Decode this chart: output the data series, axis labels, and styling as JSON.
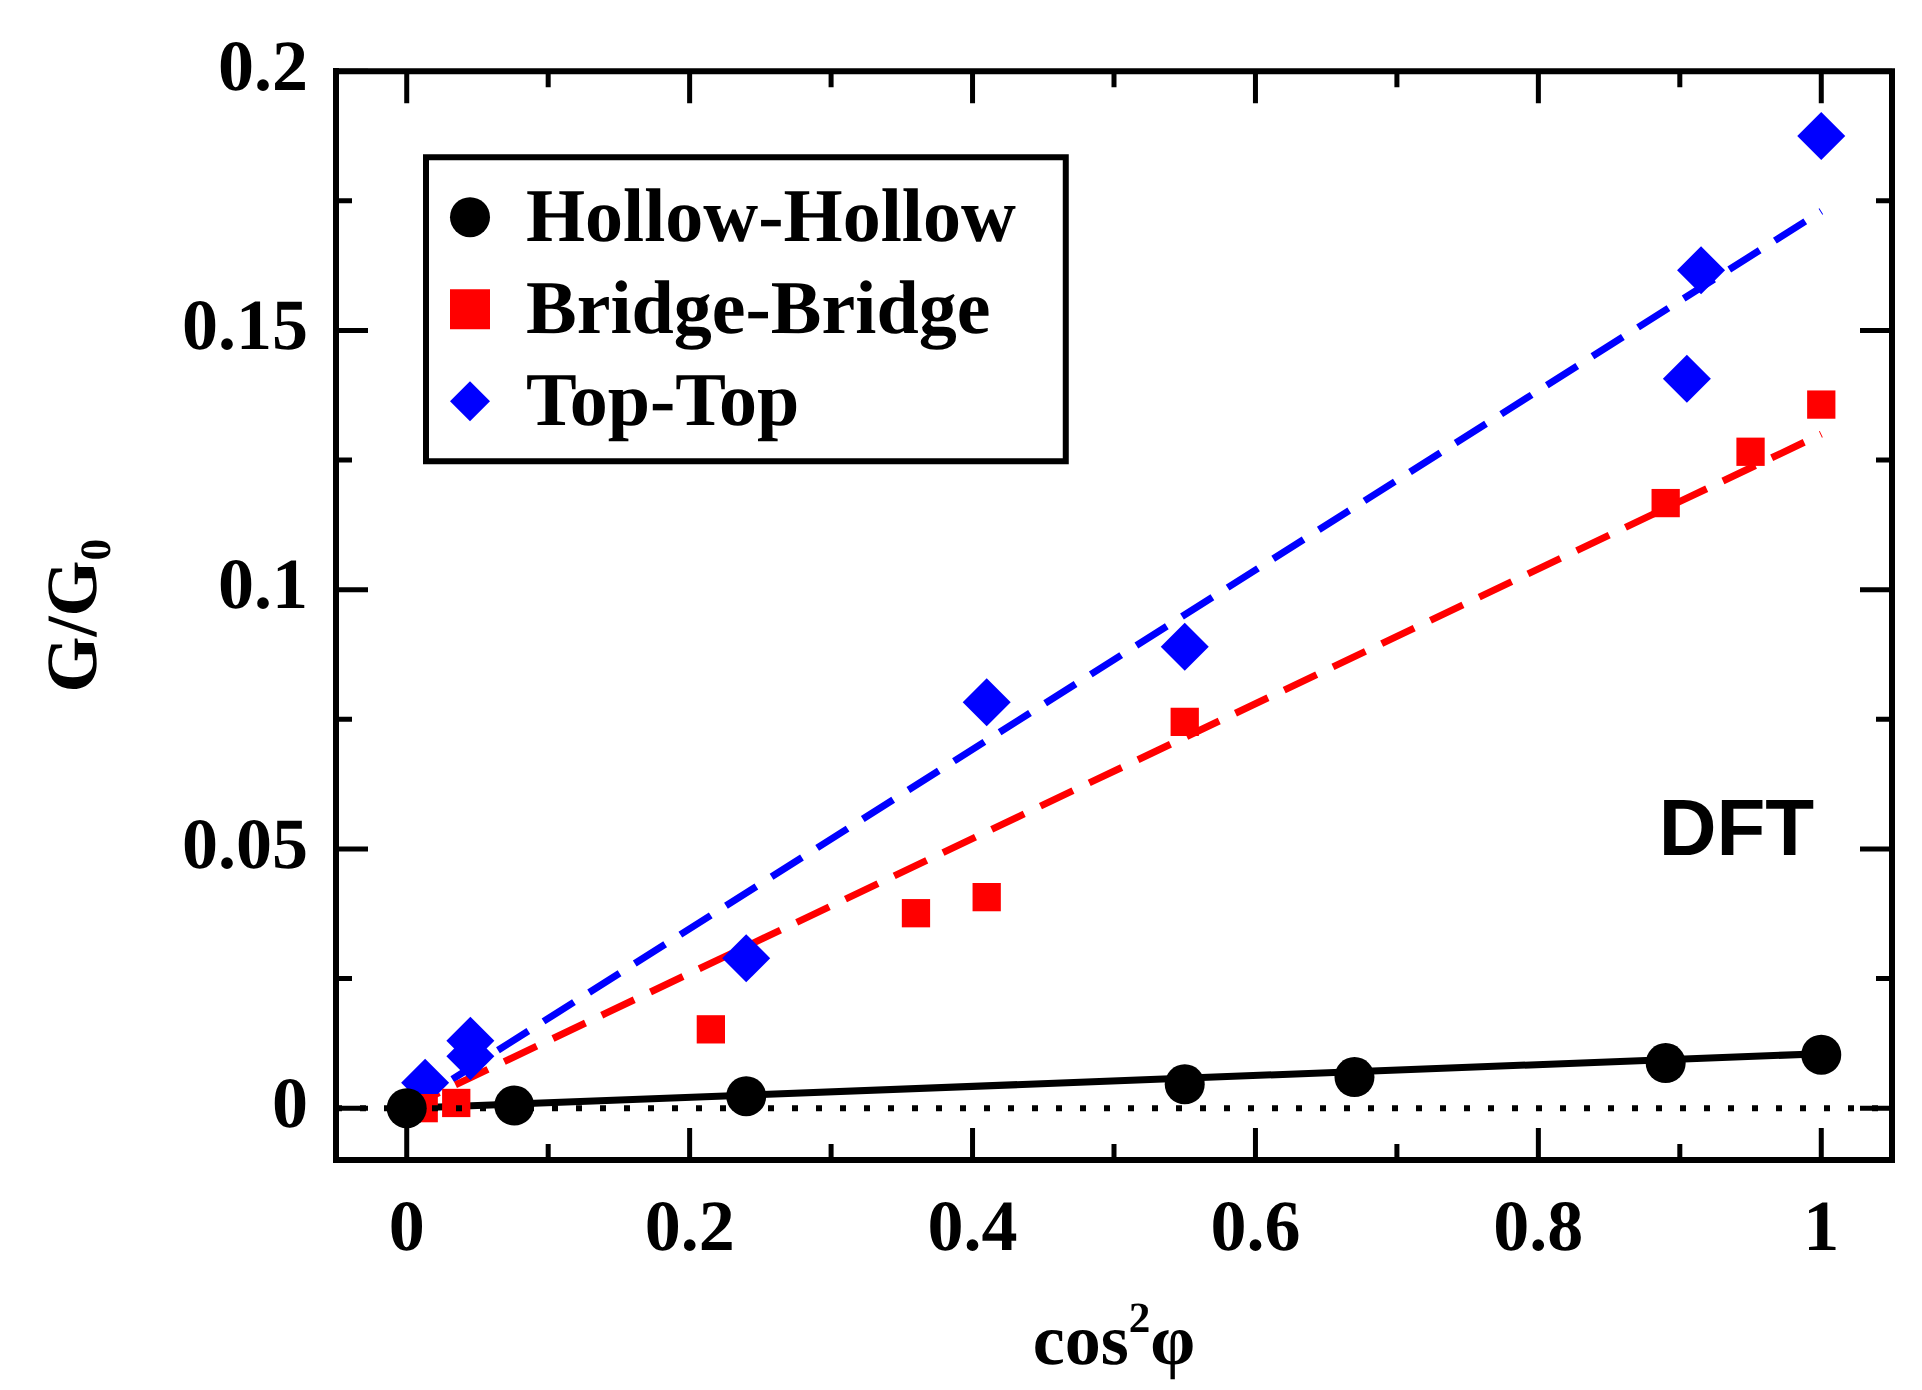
{
  "chart_data": {
    "type": "scatter",
    "xlabel": "cos$^{2}$φ",
    "ylabel": "G/G$_{0}$",
    "annotations": [
      "DFT"
    ],
    "xlim": [
      -0.05,
      1.05
    ],
    "ylim": [
      -0.01,
      0.2
    ],
    "xticks": [
      0,
      {
        "value": 0.1,
        "label": null
      },
      {
        "value": 0.2,
        "label": "0.2"
      },
      {
        "value": 0.3,
        "label": null
      },
      {
        "value": 0.4,
        "label": "0.4"
      },
      {
        "value": 0.5,
        "label": null
      },
      {
        "value": 0.6,
        "label": "0.6"
      },
      {
        "value": 0.7,
        "label": null
      },
      {
        "value": 0.8,
        "label": "0.8"
      },
      {
        "value": 0.9,
        "label": null
      },
      1
    ],
    "yticks": [
      0,
      {
        "value": 0.025,
        "label": null
      },
      0.05,
      {
        "value": 0.075,
        "label": null
      },
      {
        "value": 0.1,
        "label": "0.1"
      },
      {
        "value": 0.125,
        "label": null
      },
      0.15,
      {
        "value": 0.175,
        "label": null
      },
      {
        "value": 0.2,
        "label": "0.2"
      }
    ],
    "grid": false,
    "legend": "top left",
    "ref_lines": [
      {
        "axis": "y",
        "value": 0,
        "color": "#000000",
        "line_style": "dotted"
      }
    ],
    "series": [
      {
        "name": "Hollow-Hollow",
        "type": "scatter",
        "color": "#000000",
        "marker": "circle",
        "x": [
          0,
          0.076,
          0.24,
          0.55,
          0.67,
          0.89,
          1
        ],
        "values": [
          0,
          0.0005,
          0.0023,
          0.0046,
          0.006,
          0.0087,
          0.0103
        ]
      },
      {
        "name": "Bridge-Bridge",
        "type": "scatter",
        "color": "#ff0000",
        "marker": "square",
        "x": [
          0.012,
          0.035,
          0.215,
          0.36,
          0.41,
          0.55,
          0.89,
          0.95,
          1
        ],
        "values": [
          0,
          0.001,
          0.0152,
          0.0376,
          0.0407,
          0.0745,
          0.1167,
          0.1266,
          0.1357
        ]
      },
      {
        "name": "Top-Top",
        "type": "scatter",
        "color": "#0000ff",
        "marker": "diamond",
        "x": [
          0.013,
          0.045,
          0.045,
          0.24,
          0.41,
          0.55,
          0.905,
          0.915,
          1
        ],
        "values": [
          0.0049,
          0.013,
          0.01,
          0.0289,
          0.0783,
          0.089,
          0.1407,
          0.1616,
          0.1875
        ]
      },
      {
        "type": "line",
        "color": "#000000",
        "marker": "none",
        "line_style": "solid",
        "x": [
          0,
          1
        ],
        "values": [
          0,
          0.0105
        ]
      },
      {
        "type": "line",
        "color": "#ff0000",
        "marker": "none",
        "line_style": "dashed",
        "x": [
          0,
          1
        ],
        "values": [
          0,
          0.13
        ]
      },
      {
        "type": "line",
        "color": "#0000ff",
        "marker": "none",
        "line_style": "dashed",
        "x": [
          0,
          1
        ],
        "values": [
          0,
          0.173
        ]
      }
    ]
  }
}
